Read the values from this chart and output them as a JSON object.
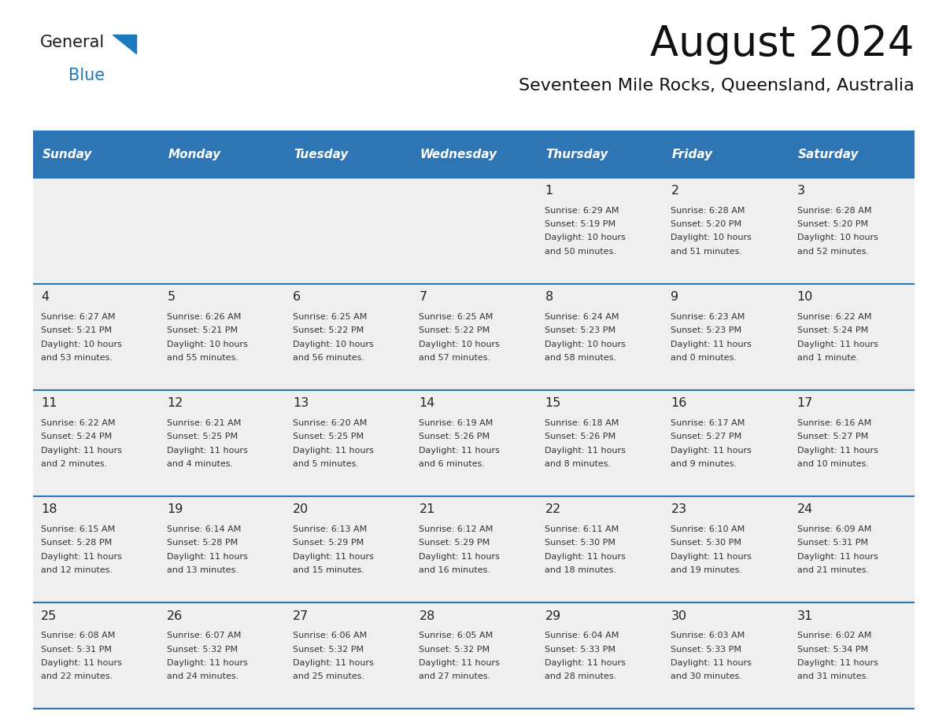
{
  "title": "August 2024",
  "subtitle": "Seventeen Mile Rocks, Queensland, Australia",
  "days_of_week": [
    "Sunday",
    "Monday",
    "Tuesday",
    "Wednesday",
    "Thursday",
    "Friday",
    "Saturday"
  ],
  "header_bg": "#2E75B6",
  "header_text_color": "#FFFFFF",
  "row_bg": "#EFEFEF",
  "separator_color": "#2E75B6",
  "cell_text_color": "#333333",
  "day_num_color": "#222222",
  "calendar_data": [
    [
      null,
      null,
      null,
      null,
      {
        "day": 1,
        "sunrise": "6:29 AM",
        "sunset": "5:19 PM",
        "daylight_h": "10 hours",
        "daylight_m": "and 50 minutes."
      },
      {
        "day": 2,
        "sunrise": "6:28 AM",
        "sunset": "5:20 PM",
        "daylight_h": "10 hours",
        "daylight_m": "and 51 minutes."
      },
      {
        "day": 3,
        "sunrise": "6:28 AM",
        "sunset": "5:20 PM",
        "daylight_h": "10 hours",
        "daylight_m": "and 52 minutes."
      }
    ],
    [
      {
        "day": 4,
        "sunrise": "6:27 AM",
        "sunset": "5:21 PM",
        "daylight_h": "10 hours",
        "daylight_m": "and 53 minutes."
      },
      {
        "day": 5,
        "sunrise": "6:26 AM",
        "sunset": "5:21 PM",
        "daylight_h": "10 hours",
        "daylight_m": "and 55 minutes."
      },
      {
        "day": 6,
        "sunrise": "6:25 AM",
        "sunset": "5:22 PM",
        "daylight_h": "10 hours",
        "daylight_m": "and 56 minutes."
      },
      {
        "day": 7,
        "sunrise": "6:25 AM",
        "sunset": "5:22 PM",
        "daylight_h": "10 hours",
        "daylight_m": "and 57 minutes."
      },
      {
        "day": 8,
        "sunrise": "6:24 AM",
        "sunset": "5:23 PM",
        "daylight_h": "10 hours",
        "daylight_m": "and 58 minutes."
      },
      {
        "day": 9,
        "sunrise": "6:23 AM",
        "sunset": "5:23 PM",
        "daylight_h": "11 hours",
        "daylight_m": "and 0 minutes."
      },
      {
        "day": 10,
        "sunrise": "6:22 AM",
        "sunset": "5:24 PM",
        "daylight_h": "11 hours",
        "daylight_m": "and 1 minute."
      }
    ],
    [
      {
        "day": 11,
        "sunrise": "6:22 AM",
        "sunset": "5:24 PM",
        "daylight_h": "11 hours",
        "daylight_m": "and 2 minutes."
      },
      {
        "day": 12,
        "sunrise": "6:21 AM",
        "sunset": "5:25 PM",
        "daylight_h": "11 hours",
        "daylight_m": "and 4 minutes."
      },
      {
        "day": 13,
        "sunrise": "6:20 AM",
        "sunset": "5:25 PM",
        "daylight_h": "11 hours",
        "daylight_m": "and 5 minutes."
      },
      {
        "day": 14,
        "sunrise": "6:19 AM",
        "sunset": "5:26 PM",
        "daylight_h": "11 hours",
        "daylight_m": "and 6 minutes."
      },
      {
        "day": 15,
        "sunrise": "6:18 AM",
        "sunset": "5:26 PM",
        "daylight_h": "11 hours",
        "daylight_m": "and 8 minutes."
      },
      {
        "day": 16,
        "sunrise": "6:17 AM",
        "sunset": "5:27 PM",
        "daylight_h": "11 hours",
        "daylight_m": "and 9 minutes."
      },
      {
        "day": 17,
        "sunrise": "6:16 AM",
        "sunset": "5:27 PM",
        "daylight_h": "11 hours",
        "daylight_m": "and 10 minutes."
      }
    ],
    [
      {
        "day": 18,
        "sunrise": "6:15 AM",
        "sunset": "5:28 PM",
        "daylight_h": "11 hours",
        "daylight_m": "and 12 minutes."
      },
      {
        "day": 19,
        "sunrise": "6:14 AM",
        "sunset": "5:28 PM",
        "daylight_h": "11 hours",
        "daylight_m": "and 13 minutes."
      },
      {
        "day": 20,
        "sunrise": "6:13 AM",
        "sunset": "5:29 PM",
        "daylight_h": "11 hours",
        "daylight_m": "and 15 minutes."
      },
      {
        "day": 21,
        "sunrise": "6:12 AM",
        "sunset": "5:29 PM",
        "daylight_h": "11 hours",
        "daylight_m": "and 16 minutes."
      },
      {
        "day": 22,
        "sunrise": "6:11 AM",
        "sunset": "5:30 PM",
        "daylight_h": "11 hours",
        "daylight_m": "and 18 minutes."
      },
      {
        "day": 23,
        "sunrise": "6:10 AM",
        "sunset": "5:30 PM",
        "daylight_h": "11 hours",
        "daylight_m": "and 19 minutes."
      },
      {
        "day": 24,
        "sunrise": "6:09 AM",
        "sunset": "5:31 PM",
        "daylight_h": "11 hours",
        "daylight_m": "and 21 minutes."
      }
    ],
    [
      {
        "day": 25,
        "sunrise": "6:08 AM",
        "sunset": "5:31 PM",
        "daylight_h": "11 hours",
        "daylight_m": "and 22 minutes."
      },
      {
        "day": 26,
        "sunrise": "6:07 AM",
        "sunset": "5:32 PM",
        "daylight_h": "11 hours",
        "daylight_m": "and 24 minutes."
      },
      {
        "day": 27,
        "sunrise": "6:06 AM",
        "sunset": "5:32 PM",
        "daylight_h": "11 hours",
        "daylight_m": "and 25 minutes."
      },
      {
        "day": 28,
        "sunrise": "6:05 AM",
        "sunset": "5:32 PM",
        "daylight_h": "11 hours",
        "daylight_m": "and 27 minutes."
      },
      {
        "day": 29,
        "sunrise": "6:04 AM",
        "sunset": "5:33 PM",
        "daylight_h": "11 hours",
        "daylight_m": "and 28 minutes."
      },
      {
        "day": 30,
        "sunrise": "6:03 AM",
        "sunset": "5:33 PM",
        "daylight_h": "11 hours",
        "daylight_m": "and 30 minutes."
      },
      {
        "day": 31,
        "sunrise": "6:02 AM",
        "sunset": "5:34 PM",
        "daylight_h": "11 hours",
        "daylight_m": "and 31 minutes."
      }
    ]
  ],
  "logo_text1": "General",
  "logo_text2": "Blue",
  "logo_color1": "#1a1a1a",
  "logo_color2": "#1a7abf",
  "logo_triangle_color": "#1a7abf",
  "fig_width": 11.88,
  "fig_height": 9.18,
  "dpi": 100
}
